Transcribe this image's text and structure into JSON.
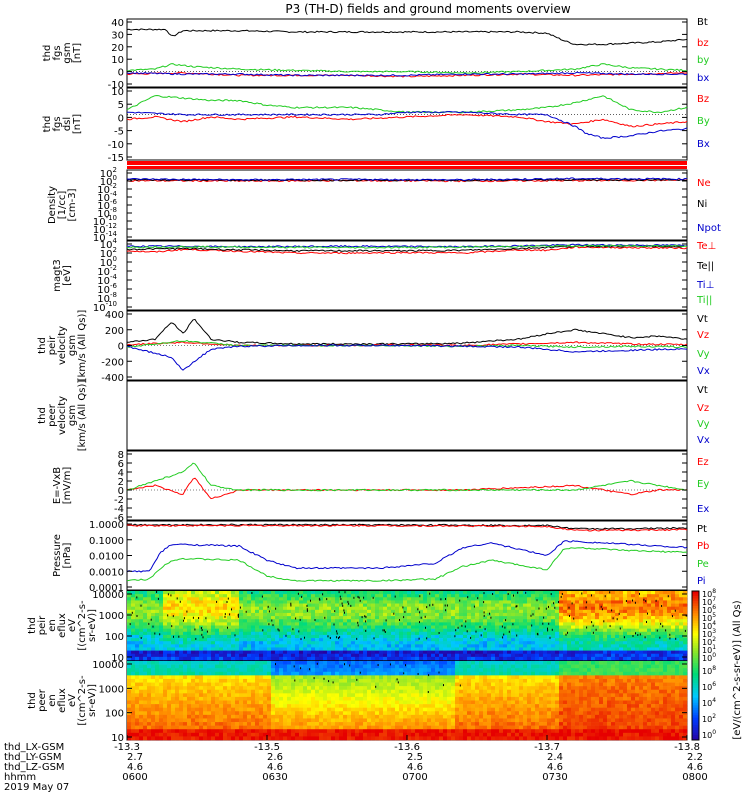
{
  "title": "P3 (TH-D) fields and ground moments overview",
  "colors": {
    "black": "#000000",
    "red": "#ff0000",
    "green": "#22cc22",
    "blue": "#0000cc"
  },
  "chart_data": [
    {
      "type": "line",
      "ylabel": [
        "thd",
        "fgs",
        "gsm",
        "[nT]"
      ],
      "ylim": [
        -10,
        40
      ],
      "yticks": [
        "40",
        "30",
        "20",
        "10",
        "0",
        "-10"
      ],
      "legend": [
        {
          "name": "Bt",
          "color": "black"
        },
        {
          "name": "bz",
          "color": "red"
        },
        {
          "name": "by",
          "color": "green"
        },
        {
          "name": "bx",
          "color": "blue"
        }
      ],
      "series": [
        {
          "name": "Bt",
          "color": "black",
          "x": [
            0,
            0.04,
            0.07,
            0.08,
            0.1,
            0.2,
            0.3,
            0.4,
            0.5,
            0.6,
            0.65,
            0.7,
            0.75,
            0.78,
            0.8,
            0.85,
            0.9,
            0.95,
            1
          ],
          "y": [
            34,
            34,
            34,
            28,
            33,
            33,
            32,
            32,
            32,
            32,
            32,
            32,
            31,
            25,
            22,
            22,
            23,
            24,
            26
          ]
        },
        {
          "name": "bz",
          "color": "red",
          "x": [
            0,
            0.1,
            0.2,
            0.3,
            0.4,
            0.5,
            0.6,
            0.7,
            0.8,
            0.9,
            1
          ],
          "y": [
            -2,
            -1,
            -3,
            -3,
            -3,
            -4,
            -3,
            -2,
            -3,
            -2,
            -1
          ]
        },
        {
          "name": "by",
          "color": "green",
          "x": [
            0,
            0.05,
            0.08,
            0.12,
            0.2,
            0.3,
            0.4,
            0.5,
            0.6,
            0.7,
            0.75,
            0.8,
            0.85,
            0.9,
            1
          ],
          "y": [
            1,
            2,
            6,
            4,
            2,
            1,
            0,
            0,
            -1,
            0,
            1,
            2,
            6,
            3,
            1
          ]
        },
        {
          "name": "bx",
          "color": "blue",
          "x": [
            0,
            0.1,
            0.2,
            0.3,
            0.4,
            0.5,
            0.6,
            0.7,
            0.8,
            0.9,
            1
          ],
          "y": [
            -1,
            -2,
            -2,
            -3,
            -3,
            -3,
            -2,
            -2,
            -1,
            -2,
            -2
          ]
        }
      ]
    },
    {
      "type": "line",
      "ylabel": [
        "thd",
        "fgs",
        "dsl",
        "[nT]"
      ],
      "ylim": [
        -18,
        10
      ],
      "yticks": [
        "10",
        "5",
        "0",
        "-5",
        "-10",
        "-15"
      ],
      "legend": [
        {
          "name": "Bz",
          "color": "red"
        },
        {
          "name": "By",
          "color": "green"
        },
        {
          "name": "Bx",
          "color": "blue"
        }
      ],
      "series": [
        {
          "name": "Bz",
          "color": "red",
          "x": [
            0,
            0.05,
            0.1,
            0.15,
            0.2,
            0.3,
            0.4,
            0.5,
            0.6,
            0.7,
            0.75,
            0.8,
            0.85,
            0.9,
            0.95,
            1
          ],
          "y": [
            -2,
            -1,
            -3,
            -1,
            -2,
            -1,
            -2,
            -1,
            0,
            -1,
            -3,
            -4,
            -2,
            -5,
            -4,
            -3
          ]
        },
        {
          "name": "By",
          "color": "green",
          "x": [
            0,
            0.05,
            0.1,
            0.15,
            0.2,
            0.25,
            0.3,
            0.4,
            0.45,
            0.5,
            0.6,
            0.7,
            0.75,
            0.8,
            0.85,
            0.9,
            0.95,
            1
          ],
          "y": [
            2,
            8,
            7,
            6,
            6,
            4,
            3,
            3,
            2,
            1,
            1,
            2,
            3,
            5,
            8,
            2,
            1,
            3
          ]
        },
        {
          "name": "Bx",
          "color": "blue",
          "x": [
            0,
            0.1,
            0.2,
            0.3,
            0.4,
            0.45,
            0.5,
            0.6,
            0.7,
            0.75,
            0.8,
            0.82,
            0.85,
            0.9,
            0.95,
            1
          ],
          "y": [
            1,
            0,
            0,
            0,
            0,
            0,
            1,
            1,
            0,
            0,
            -5,
            -8,
            -10,
            -9,
            -7,
            -6
          ]
        }
      ]
    },
    {
      "type": "line",
      "ylabel": [
        "Density",
        "[1/cc]",
        "[cm-3]"
      ],
      "ylim": [
        -14,
        2
      ],
      "ylog": true,
      "yticks": [
        "10^2",
        "10^0",
        "10^-2",
        "10^-4",
        "10^-6",
        "10^-8",
        "10^-10",
        "10^-12",
        "10^-14"
      ],
      "legend": [
        {
          "name": "Ne",
          "color": "red"
        },
        {
          "name": "Ni",
          "color": "black"
        },
        {
          "name": "Npot",
          "color": "blue"
        }
      ],
      "series": [
        {
          "name": "Ne",
          "color": "red",
          "x": [
            0,
            0.2,
            0.4,
            0.6,
            0.8,
            1
          ],
          "y": [
            0.1,
            0.0,
            0.1,
            0.0,
            0.1,
            0.2
          ]
        },
        {
          "name": "Ni",
          "color": "black",
          "x": [
            0,
            0.2,
            0.4,
            0.6,
            0.8,
            1
          ],
          "y": [
            0.3,
            0.2,
            0.2,
            0.2,
            0.3,
            0.3
          ]
        },
        {
          "name": "Npot",
          "color": "blue",
          "x": [
            0,
            0.2,
            0.4,
            0.6,
            0.8,
            1
          ],
          "y": [
            0.5,
            0.3,
            0.4,
            0.3,
            0.6,
            0.5
          ]
        }
      ]
    },
    {
      "type": "line",
      "ylabel": [
        "magt3",
        "[eV]"
      ],
      "ylim": [
        -10,
        4
      ],
      "ylog": true,
      "yticks": [
        "10^4",
        "10^2",
        "10^0",
        "10^-2",
        "10^-4",
        "10^-6",
        "10^-8",
        "10^-10"
      ],
      "legend": [
        {
          "name": "Te⊥",
          "color": "red"
        },
        {
          "name": "Te||",
          "color": "black"
        },
        {
          "name": "Ti⊥",
          "color": "blue"
        },
        {
          "name": "Ti||",
          "color": "green"
        }
      ],
      "series": [
        {
          "name": "Te⊥",
          "color": "red",
          "x": [
            0,
            0.05,
            0.1,
            0.2,
            0.3,
            0.4,
            0.5,
            0.6,
            0.7,
            0.75,
            0.8,
            0.9,
            1
          ],
          "y": [
            2.5,
            2.2,
            2.8,
            2.4,
            2.0,
            2.0,
            2.1,
            2.0,
            2.7,
            2.6,
            3.3,
            3.2,
            3.1
          ]
        },
        {
          "name": "Te||",
          "color": "black",
          "x": [
            0,
            0.1,
            0.2,
            0.3,
            0.4,
            0.5,
            0.6,
            0.7,
            0.8,
            0.9,
            1
          ],
          "y": [
            2.8,
            3.0,
            2.7,
            2.5,
            2.5,
            2.5,
            2.6,
            3.0,
            3.5,
            3.5,
            3.4
          ]
        },
        {
          "name": "Ti⊥",
          "color": "blue",
          "x": [
            0,
            0.1,
            0.2,
            0.4,
            0.6,
            0.8,
            1
          ],
          "y": [
            3.5,
            3.5,
            3.4,
            3.5,
            3.4,
            3.8,
            3.7
          ]
        },
        {
          "name": "Ti||",
          "color": "green",
          "x": [
            0,
            0.1,
            0.2,
            0.4,
            0.6,
            0.8,
            1
          ],
          "y": [
            3.3,
            3.4,
            3.3,
            3.2,
            3.3,
            3.6,
            3.6
          ]
        }
      ]
    },
    {
      "type": "line",
      "ylabel": [
        "thd",
        "peir",
        "velocity",
        "gsm",
        "[km/s (All Qs)]"
      ],
      "ylim": [
        -400,
        400
      ],
      "yticks": [
        "400",
        "200",
        "0",
        "-200",
        "-400"
      ],
      "legend": [
        {
          "name": "Vt",
          "color": "black"
        },
        {
          "name": "Vz",
          "color": "red"
        },
        {
          "name": "Vy",
          "color": "green"
        },
        {
          "name": "Vx",
          "color": "blue"
        }
      ],
      "series": [
        {
          "name": "Vt",
          "color": "black",
          "x": [
            0,
            0.05,
            0.08,
            0.1,
            0.12,
            0.15,
            0.2,
            0.3,
            0.4,
            0.5,
            0.6,
            0.65,
            0.7,
            0.75,
            0.8,
            0.85,
            0.9,
            0.95,
            1
          ],
          "y": [
            40,
            80,
            300,
            150,
            340,
            80,
            40,
            20,
            20,
            20,
            30,
            60,
            80,
            150,
            200,
            150,
            100,
            120,
            80
          ]
        },
        {
          "name": "Vz",
          "color": "red",
          "x": [
            0,
            0.1,
            0.2,
            0.3,
            0.4,
            0.5,
            0.6,
            0.7,
            0.8,
            0.9,
            1
          ],
          "y": [
            10,
            40,
            0,
            0,
            0,
            10,
            0,
            20,
            40,
            20,
            10
          ]
        },
        {
          "name": "Vy",
          "color": "green",
          "x": [
            0,
            0.1,
            0.2,
            0.3,
            0.4,
            0.5,
            0.6,
            0.7,
            0.8,
            0.9,
            1
          ],
          "y": [
            -20,
            60,
            0,
            0,
            0,
            0,
            -10,
            0,
            -20,
            -10,
            -20
          ]
        },
        {
          "name": "Vx",
          "color": "blue",
          "x": [
            0,
            0.08,
            0.1,
            0.12,
            0.15,
            0.2,
            0.3,
            0.4,
            0.5,
            0.6,
            0.7,
            0.8,
            0.9,
            1
          ],
          "y": [
            -10,
            -150,
            -320,
            -200,
            -50,
            -10,
            0,
            0,
            0,
            -10,
            -20,
            -80,
            -60,
            -40
          ]
        }
      ]
    },
    {
      "type": "line",
      "ylabel": [
        "thd",
        "peer",
        "velocity",
        "gsm",
        "[km/s (All Qs)]"
      ],
      "legend": [
        {
          "name": "Vt",
          "color": "black"
        },
        {
          "name": "Vz",
          "color": "red"
        },
        {
          "name": "Vy",
          "color": "green"
        },
        {
          "name": "Vx",
          "color": "blue"
        }
      ],
      "series": []
    },
    {
      "type": "line",
      "ylabel": [
        "E=-VxB",
        "[mV/m]"
      ],
      "ylim": [
        -6,
        8
      ],
      "yticks": [
        "8",
        "6",
        "4",
        "2",
        "0",
        "-2",
        "-4",
        "-6"
      ],
      "legend": [
        {
          "name": "Ez",
          "color": "red"
        },
        {
          "name": "Ey",
          "color": "green"
        },
        {
          "name": "Ex",
          "color": "blue"
        }
      ],
      "series": [
        {
          "name": "Ez",
          "color": "red",
          "x": [
            0,
            0.05,
            0.1,
            0.12,
            0.15,
            0.2,
            0.3,
            0.4,
            0.5,
            0.6,
            0.7,
            0.8,
            0.9,
            0.95,
            1
          ],
          "y": [
            0,
            1,
            -1,
            3,
            -2,
            0,
            0,
            0,
            0,
            0,
            0.5,
            1,
            -1,
            0,
            0
          ]
        },
        {
          "name": "Ey",
          "color": "green",
          "x": [
            0,
            0.05,
            0.1,
            0.12,
            0.15,
            0.2,
            0.3,
            0.4,
            0.5,
            0.6,
            0.7,
            0.8,
            0.9,
            0.95,
            1
          ],
          "y": [
            0,
            2,
            4,
            6,
            1,
            0,
            0,
            0,
            0,
            0,
            0,
            0,
            2,
            1,
            0
          ]
        }
      ]
    },
    {
      "type": "line",
      "ylabel": [
        "Pressure",
        "[nPa]"
      ],
      "ylim": [
        -4,
        0
      ],
      "ylog": true,
      "yticks": [
        "1.0000",
        "0.1000",
        "0.0100",
        "0.0010",
        "0.0001"
      ],
      "legend": [
        {
          "name": "Pt",
          "color": "black"
        },
        {
          "name": "Pb",
          "color": "red"
        },
        {
          "name": "Pe",
          "color": "green"
        },
        {
          "name": "Pi",
          "color": "blue"
        }
      ],
      "series": [
        {
          "name": "Pt",
          "color": "black",
          "x": [
            0,
            0.2,
            0.4,
            0.6,
            0.75,
            0.8,
            0.9,
            1
          ],
          "y": [
            -0.05,
            -0.05,
            -0.06,
            -0.07,
            -0.1,
            -0.3,
            -0.3,
            -0.25
          ]
        },
        {
          "name": "Pb",
          "color": "red",
          "x": [
            0,
            0.2,
            0.4,
            0.6,
            0.75,
            0.8,
            0.9,
            1
          ],
          "y": [
            -0.1,
            -0.1,
            -0.1,
            -0.12,
            -0.15,
            -0.4,
            -0.4,
            -0.35
          ]
        },
        {
          "name": "Pe",
          "color": "green",
          "x": [
            0,
            0.04,
            0.06,
            0.08,
            0.1,
            0.2,
            0.25,
            0.3,
            0.45,
            0.55,
            0.6,
            0.65,
            0.7,
            0.75,
            0.78,
            0.8,
            0.85,
            0.9,
            1
          ],
          "y": [
            -3.6,
            -3.5,
            -2.8,
            -2.3,
            -2.2,
            -2.3,
            -3.3,
            -3.6,
            -3.6,
            -3.5,
            -2.7,
            -2.3,
            -2.6,
            -2.9,
            -1.6,
            -1.5,
            -1.6,
            -1.7,
            -1.8
          ]
        },
        {
          "name": "Pi",
          "color": "blue",
          "x": [
            0,
            0.04,
            0.06,
            0.08,
            0.1,
            0.2,
            0.25,
            0.3,
            0.45,
            0.55,
            0.6,
            0.65,
            0.7,
            0.75,
            0.78,
            0.8,
            0.85,
            0.9,
            1
          ],
          "y": [
            -3,
            -3,
            -1.8,
            -1.3,
            -1.3,
            -1.4,
            -2.3,
            -2.8,
            -2.8,
            -2.5,
            -1.5,
            -1.2,
            -1.6,
            -2.0,
            -1.1,
            -1.1,
            -1.2,
            -1.3,
            -1.5
          ]
        }
      ]
    },
    {
      "type": "heatmap",
      "ylabel": [
        "thd",
        "peir",
        "en",
        "eflux",
        "eV",
        "[(cm^2-s-",
        "sr-eV)]"
      ],
      "yticks": [
        "10000",
        "1000",
        "100",
        "10"
      ]
    },
    {
      "type": "heatmap",
      "ylabel": [
        "thd",
        "peer",
        "en",
        "eflux",
        "eV",
        "[(cm^2-s-",
        "sr-eV)]"
      ],
      "yticks": [
        "10000",
        "1000",
        "100",
        "10"
      ]
    }
  ],
  "colorbar": {
    "labels_top": [
      "10^8",
      "10^7",
      "10^6",
      "10^5",
      "10^4",
      "10^3",
      "10^2",
      "10^1",
      "10^0"
    ],
    "labels_bottom": [
      "10^8",
      "10^6",
      "10^4",
      "10^2",
      "10^0"
    ],
    "title": "[eV/(cm^2-s-sr-eV)] (All Qs)"
  },
  "x_axis": {
    "row_labels": [
      "thd_LX-GSM",
      "thd_LY-GSM",
      "thd_LZ-GSM",
      "hhmm",
      "2019 May 07"
    ],
    "ticks": [
      {
        "v": [
          "-13.3",
          "2.7",
          "4.6",
          "0600"
        ]
      },
      {
        "v": [
          "-13.5",
          "2.6",
          "4.6",
          "0630"
        ]
      },
      {
        "v": [
          "-13.6",
          "2.5",
          "4.6",
          "0700"
        ]
      },
      {
        "v": [
          "-13.7",
          "2.4",
          "4.6",
          "0730"
        ]
      },
      {
        "v": [
          "-13.8",
          "2.2",
          "4.6",
          "0800"
        ]
      }
    ]
  }
}
